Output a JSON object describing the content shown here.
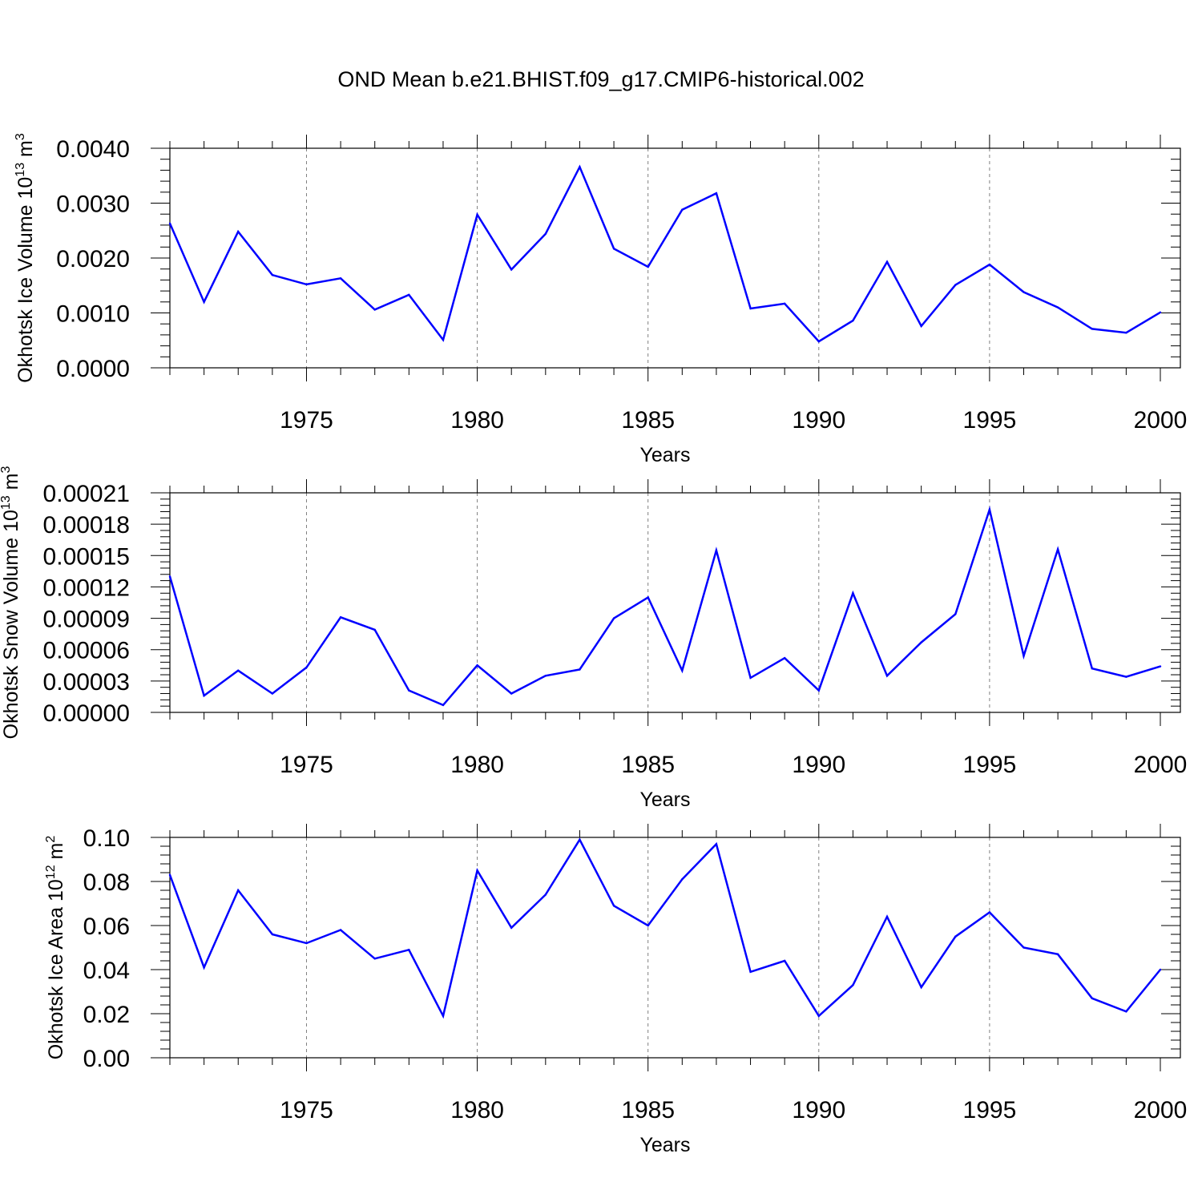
{
  "title": "OND Mean b.e21.BHIST.f09_g17.CMIP6-historical.002",
  "colors": {
    "line": "#0000ff",
    "axis": "#000000",
    "grid": "#808080",
    "background": "#ffffff"
  },
  "chart_data": [
    {
      "type": "line",
      "xlabel": "Years",
      "ylabel": {
        "main": "Okhotsk Ice Volume 10",
        "exp": "13",
        "unit": " m",
        "unit_exp": "3"
      },
      "xlim": [
        1971,
        2000
      ],
      "ylim": [
        0,
        0.004
      ],
      "xticks": [
        1975,
        1980,
        1985,
        1990,
        1995,
        2000
      ],
      "yticks": [
        "0.0000",
        "0.0010",
        "0.0020",
        "0.0030",
        "0.0040"
      ],
      "ytick_values": [
        0,
        0.001,
        0.002,
        0.003,
        0.004
      ],
      "grid": "vertical dashed at major x ticks",
      "x": [
        1971,
        1972,
        1973,
        1974,
        1975,
        1976,
        1977,
        1978,
        1979,
        1980,
        1981,
        1982,
        1983,
        1984,
        1985,
        1986,
        1987,
        1988,
        1989,
        1990,
        1991,
        1992,
        1993,
        1994,
        1995,
        1996,
        1997,
        1998,
        1999,
        2000
      ],
      "y": [
        0.00263,
        0.0012,
        0.00248,
        0.00169,
        0.00152,
        0.00163,
        0.00106,
        0.00133,
        0.00051,
        0.00279,
        0.00179,
        0.00244,
        0.00366,
        0.00217,
        0.00184,
        0.00288,
        0.00318,
        0.00108,
        0.00117,
        0.00048,
        0.00086,
        0.00193,
        0.00076,
        0.00151,
        0.00188,
        0.00138,
        0.0011,
        0.00071,
        0.00064,
        0.00101
      ]
    },
    {
      "type": "line",
      "xlabel": "Years",
      "ylabel": {
        "main": "Okhotsk Snow Volume 10",
        "exp": "13",
        "unit": " m",
        "unit_exp": "3"
      },
      "xlim": [
        1971,
        2000
      ],
      "ylim": [
        0,
        0.00021
      ],
      "xticks": [
        1975,
        1980,
        1985,
        1990,
        1995,
        2000
      ],
      "yticks": [
        "0.00000",
        "0.00003",
        "0.00006",
        "0.00009",
        "0.00012",
        "0.00015",
        "0.00018",
        "0.00021"
      ],
      "ytick_values": [
        0,
        3e-05,
        6e-05,
        9e-05,
        0.00012,
        0.00015,
        0.00018,
        0.00021
      ],
      "grid": "vertical dashed at major x ticks",
      "x": [
        1971,
        1972,
        1973,
        1974,
        1975,
        1976,
        1977,
        1978,
        1979,
        1980,
        1981,
        1982,
        1983,
        1984,
        1985,
        1986,
        1987,
        1988,
        1989,
        1990,
        1991,
        1992,
        1993,
        1994,
        1995,
        1996,
        1997,
        1998,
        1999,
        2000
      ],
      "y": [
        0.00013,
        1.6e-05,
        4e-05,
        1.8e-05,
        4.3e-05,
        9.1e-05,
        7.9e-05,
        2.1e-05,
        7e-06,
        4.5e-05,
        1.8e-05,
        3.5e-05,
        4.1e-05,
        9e-05,
        0.00011,
        4e-05,
        0.000155,
        3.3e-05,
        5.2e-05,
        2.1e-05,
        0.000114,
        3.5e-05,
        6.7e-05,
        9.4e-05,
        0.000194,
        5.4e-05,
        0.000156,
        4.2e-05,
        3.4e-05,
        4.4e-05
      ]
    },
    {
      "type": "line",
      "xlabel": "Years",
      "ylabel": {
        "main": "Okhotsk Ice Area 10",
        "exp": "12",
        "unit": " m",
        "unit_exp": "2"
      },
      "xlim": [
        1971,
        2000
      ],
      "ylim": [
        0,
        0.1
      ],
      "xticks": [
        1975,
        1980,
        1985,
        1990,
        1995,
        2000
      ],
      "yticks": [
        "0.00",
        "0.02",
        "0.04",
        "0.06",
        "0.08",
        "0.10"
      ],
      "ytick_values": [
        0,
        0.02,
        0.04,
        0.06,
        0.08,
        0.1
      ],
      "grid": "vertical dashed at major x ticks",
      "x": [
        1971,
        1972,
        1973,
        1974,
        1975,
        1976,
        1977,
        1978,
        1979,
        1980,
        1981,
        1982,
        1983,
        1984,
        1985,
        1986,
        1987,
        1988,
        1989,
        1990,
        1991,
        1992,
        1993,
        1994,
        1995,
        1996,
        1997,
        1998,
        1999,
        2000
      ],
      "y": [
        0.083,
        0.041,
        0.076,
        0.056,
        0.052,
        0.058,
        0.045,
        0.049,
        0.019,
        0.085,
        0.059,
        0.074,
        0.099,
        0.069,
        0.06,
        0.081,
        0.097,
        0.039,
        0.044,
        0.019,
        0.033,
        0.064,
        0.032,
        0.055,
        0.066,
        0.05,
        0.047,
        0.027,
        0.021,
        0.04
      ]
    }
  ]
}
